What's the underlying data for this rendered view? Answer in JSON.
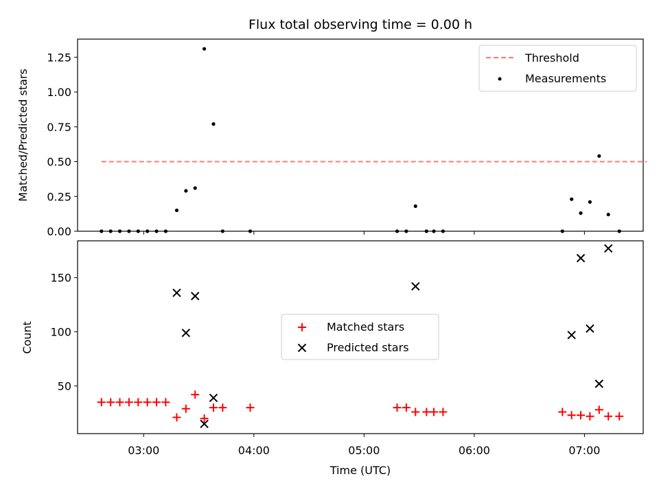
{
  "chart_data": [
    {
      "type": "scatter",
      "title": "Flux total observing time = 0.00 h",
      "xlabel": "",
      "ylabel": "Matched/Predicted stars",
      "ylim": [
        0,
        1.38
      ],
      "yticks": [
        "0.00",
        "0.25",
        "0.50",
        "0.75",
        "1.00",
        "1.25"
      ],
      "grid": false,
      "legend_placement": "top-right",
      "threshold": {
        "name": "Threshold",
        "value": 0.5,
        "x_start": "02:37",
        "x_end": "07:34",
        "color": "#ff7f7f",
        "style": "dashed"
      },
      "series": [
        {
          "name": "Measurements",
          "color": "#000000",
          "marker": "dot",
          "points": [
            [
              "02:37",
              0.0
            ],
            [
              "02:42",
              0.0
            ],
            [
              "02:47",
              0.0
            ],
            [
              "02:52",
              0.0
            ],
            [
              "02:57",
              0.0
            ],
            [
              "03:02",
              0.0
            ],
            [
              "03:07",
              0.0
            ],
            [
              "03:12",
              0.0
            ],
            [
              "03:18",
              0.15
            ],
            [
              "03:23",
              0.29
            ],
            [
              "03:28",
              0.31
            ],
            [
              "03:33",
              1.31
            ],
            [
              "03:38",
              0.77
            ],
            [
              "03:43",
              0.0
            ],
            [
              "03:58",
              0.0
            ],
            [
              "05:18",
              0.0
            ],
            [
              "05:23",
              0.0
            ],
            [
              "05:28",
              0.18
            ],
            [
              "05:34",
              0.0
            ],
            [
              "05:38",
              0.0
            ],
            [
              "05:43",
              0.0
            ],
            [
              "06:48",
              0.0
            ],
            [
              "06:53",
              0.23
            ],
            [
              "06:58",
              0.13
            ],
            [
              "07:03",
              0.21
            ],
            [
              "07:08",
              0.54
            ],
            [
              "07:13",
              0.12
            ],
            [
              "07:19",
              0.0
            ]
          ]
        }
      ]
    },
    {
      "type": "scatter",
      "xlabel": "Time (UTC)",
      "ylabel": "Count",
      "ylim": [
        6,
        184
      ],
      "yticks": [
        "50",
        "100",
        "150"
      ],
      "xticks": [
        "03:00",
        "04:00",
        "05:00",
        "06:00",
        "07:00"
      ],
      "xlim": [
        "02:24",
        "07:32"
      ],
      "grid": false,
      "legend_placement": "center",
      "series": [
        {
          "name": "Matched stars",
          "color": "#ff0000",
          "marker": "plus",
          "points": [
            [
              "02:37",
              35
            ],
            [
              "02:42",
              35
            ],
            [
              "02:47",
              35
            ],
            [
              "02:52",
              35
            ],
            [
              "02:57",
              35
            ],
            [
              "03:02",
              35
            ],
            [
              "03:07",
              35
            ],
            [
              "03:12",
              35
            ],
            [
              "03:18",
              21
            ],
            [
              "03:23",
              29
            ],
            [
              "03:28",
              42
            ],
            [
              "03:33",
              20
            ],
            [
              "03:38",
              30
            ],
            [
              "03:43",
              30
            ],
            [
              "03:58",
              30
            ],
            [
              "05:18",
              30
            ],
            [
              "05:23",
              30
            ],
            [
              "05:28",
              26
            ],
            [
              "05:34",
              26
            ],
            [
              "05:38",
              26
            ],
            [
              "05:43",
              26
            ],
            [
              "06:48",
              26
            ],
            [
              "06:53",
              23
            ],
            [
              "06:58",
              23
            ],
            [
              "07:03",
              22
            ],
            [
              "07:08",
              28
            ],
            [
              "07:13",
              22
            ],
            [
              "07:19",
              22
            ]
          ]
        },
        {
          "name": "Predicted stars",
          "color": "#000000",
          "marker": "x",
          "points": [
            [
              "03:18",
              136
            ],
            [
              "03:23",
              99
            ],
            [
              "03:28",
              133
            ],
            [
              "03:33",
              15
            ],
            [
              "03:38",
              39
            ],
            [
              "05:28",
              142
            ],
            [
              "06:53",
              97
            ],
            [
              "06:58",
              168
            ],
            [
              "07:03",
              103
            ],
            [
              "07:08",
              52
            ],
            [
              "07:13",
              177
            ]
          ]
        }
      ]
    }
  ]
}
